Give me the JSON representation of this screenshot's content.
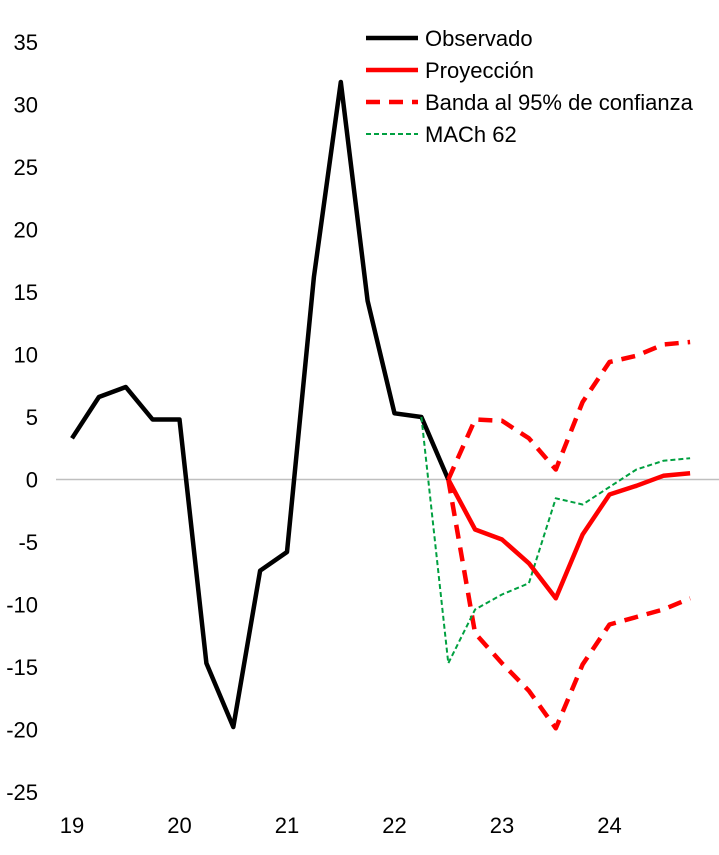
{
  "chart_data": {
    "type": "line",
    "title": "",
    "xlabel": "",
    "ylabel": "",
    "ylim": [
      -25,
      35
    ],
    "yticks": [
      35,
      30,
      25,
      20,
      15,
      10,
      5,
      0,
      -5,
      -10,
      -15,
      -20,
      -25
    ],
    "xlim": [
      19.0,
      24.85
    ],
    "xticks": [
      {
        "label": "19",
        "value": 19.0
      },
      {
        "label": "20",
        "value": 20.0
      },
      {
        "label": "21",
        "value": 21.0
      },
      {
        "label": "22",
        "value": 22.0
      },
      {
        "label": "23",
        "value": 23.0
      },
      {
        "label": "24",
        "value": 24.0
      }
    ],
    "zero_line": true,
    "grid": false,
    "legend_position": "top-right",
    "series": [
      {
        "name": "Observado",
        "color": "#000000",
        "style": "solid",
        "points": [
          [
            19.0,
            3.3
          ],
          [
            19.25,
            6.6
          ],
          [
            19.5,
            7.4
          ],
          [
            19.75,
            4.8
          ],
          [
            20.0,
            4.8
          ],
          [
            20.25,
            -14.7
          ],
          [
            20.5,
            -19.8
          ],
          [
            20.75,
            -7.3
          ],
          [
            21.0,
            -5.8
          ],
          [
            21.25,
            16.2
          ],
          [
            21.5,
            31.8
          ],
          [
            21.75,
            14.3
          ],
          [
            22.0,
            5.3
          ],
          [
            22.25,
            5.0
          ],
          [
            22.5,
            0.0
          ]
        ]
      },
      {
        "name": "Proyección",
        "color": "#ff0000",
        "style": "solid",
        "points": [
          [
            22.5,
            0.0
          ],
          [
            22.75,
            -4.0
          ],
          [
            23.0,
            -4.8
          ],
          [
            23.25,
            -6.7
          ],
          [
            23.5,
            -9.5
          ],
          [
            23.75,
            -4.4
          ],
          [
            24.0,
            -1.2
          ],
          [
            24.25,
            -0.5
          ],
          [
            24.5,
            0.3
          ],
          [
            24.75,
            0.5
          ]
        ]
      },
      {
        "name": "Banda al 95% de confianza",
        "color": "#ff0000",
        "style": "dashed",
        "points": [
          [
            22.5,
            0.0
          ],
          [
            22.75,
            4.8
          ],
          [
            23.0,
            4.7
          ],
          [
            23.25,
            3.3
          ],
          [
            23.5,
            0.8
          ],
          [
            23.75,
            6.2
          ],
          [
            24.0,
            9.4
          ],
          [
            24.25,
            9.9
          ],
          [
            24.5,
            10.8
          ],
          [
            24.75,
            11.0
          ]
        ]
      },
      {
        "name": "",
        "color": "#ff0000",
        "style": "dashed",
        "points": [
          [
            22.5,
            0.0
          ],
          [
            22.75,
            -12.3
          ],
          [
            23.0,
            -14.7
          ],
          [
            23.25,
            -16.9
          ],
          [
            23.5,
            -19.9
          ],
          [
            23.75,
            -14.8
          ],
          [
            24.0,
            -11.6
          ],
          [
            24.25,
            -11.0
          ],
          [
            24.5,
            -10.4
          ],
          [
            24.75,
            -9.5
          ]
        ]
      },
      {
        "name": "MACh 62",
        "color": "#00a040",
        "style": "dotted",
        "points": [
          [
            22.25,
            5.0
          ],
          [
            22.5,
            -14.7
          ],
          [
            22.75,
            -10.4
          ],
          [
            23.0,
            -9.2
          ],
          [
            23.25,
            -8.3
          ],
          [
            23.5,
            -1.5
          ],
          [
            23.75,
            -2.0
          ],
          [
            24.0,
            -0.6
          ],
          [
            24.25,
            0.8
          ],
          [
            24.5,
            1.5
          ],
          [
            24.75,
            1.7
          ]
        ]
      }
    ]
  }
}
